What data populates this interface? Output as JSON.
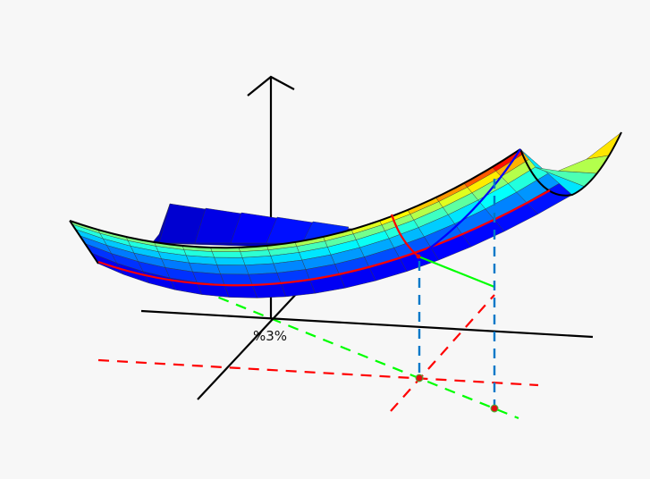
{
  "origin_label": "%3%",
  "colors": {
    "background": "#f7f7f7",
    "axes": "#000000",
    "surface_colormap": "jet",
    "back_surface": "#0000b8",
    "red_curve": "#ff0000",
    "blue_curve": "#0000ff",
    "green_line": "#00ff00",
    "projection_dash": "#0078c8",
    "red_dash": "#ff0000",
    "green_dash": "#00ff00",
    "point": "#e01010"
  }
}
